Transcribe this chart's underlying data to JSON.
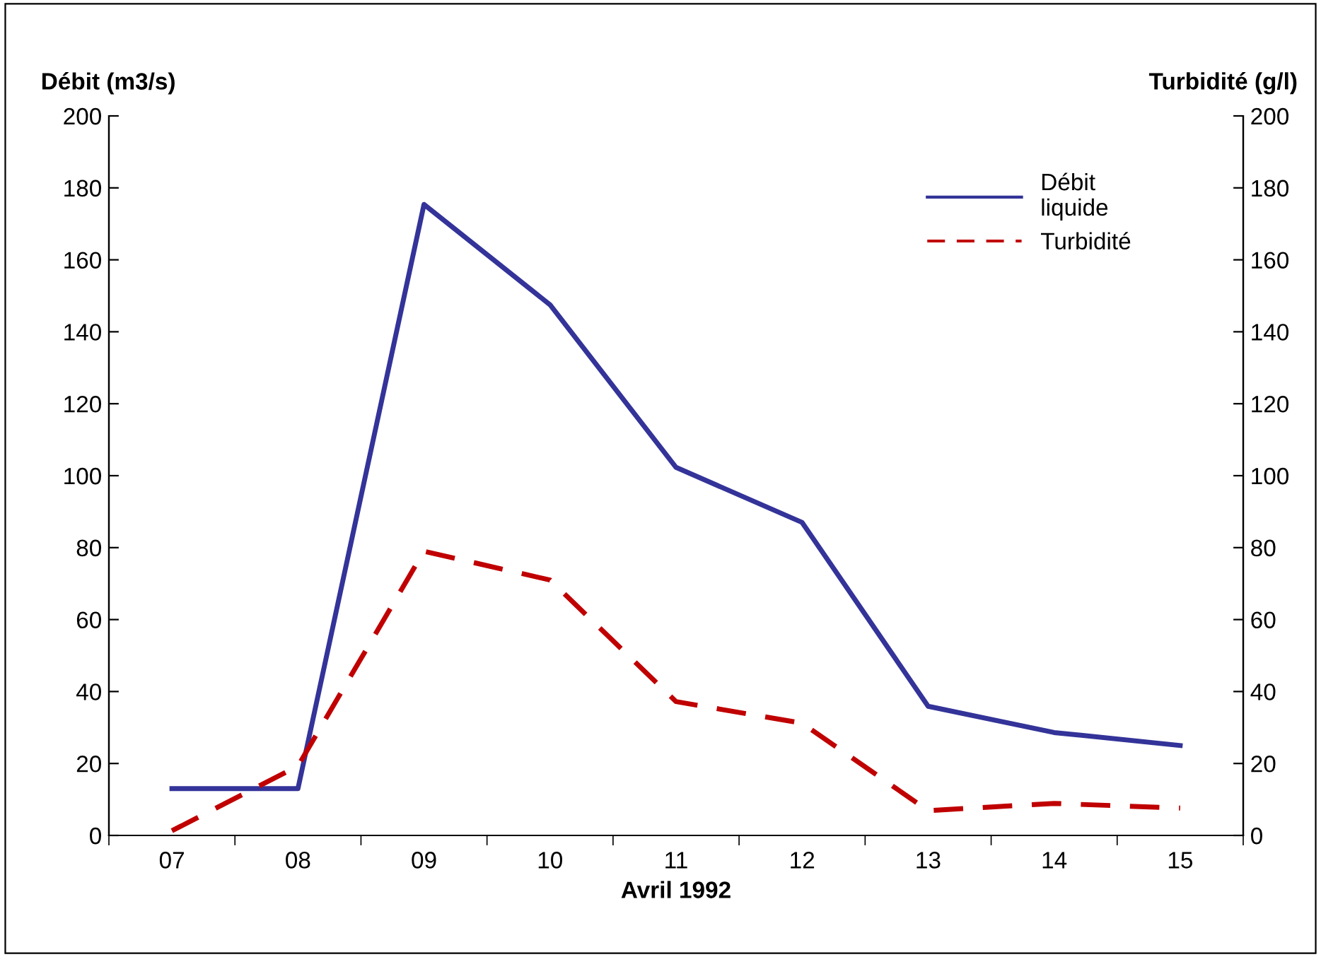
{
  "chart_data": {
    "type": "line",
    "categories": [
      "07",
      "08",
      "09",
      "10",
      "11",
      "12",
      "13",
      "14",
      "15"
    ],
    "xlabel": "Avril 1992",
    "ylabel": "Débit (m3/s)",
    "y2label": "Turbidité (g/l)",
    "series": [
      {
        "name": "Débit\nliquide",
        "color": "#333399",
        "line_style": "solid",
        "values": [
          13,
          13,
          175.4,
          147.5,
          102.3,
          87,
          35.9,
          28.6,
          25
        ]
      },
      {
        "name": "Turbidité",
        "color": "#c00000",
        "line_style": "dashed",
        "values": [
          1.3,
          19.3,
          79,
          71,
          37.2,
          31.2,
          6.9,
          8.9,
          7.6
        ]
      }
    ],
    "ylim": [
      0,
      200
    ],
    "yticks": [
      0,
      20,
      40,
      60,
      80,
      100,
      120,
      140,
      160,
      180,
      200
    ],
    "y2lim": [
      0,
      200
    ],
    "y2ticks": [
      0,
      20,
      40,
      60,
      80,
      100,
      120,
      140,
      160,
      180,
      200
    ],
    "grid": false,
    "legend": "top right",
    "marker": "none"
  }
}
